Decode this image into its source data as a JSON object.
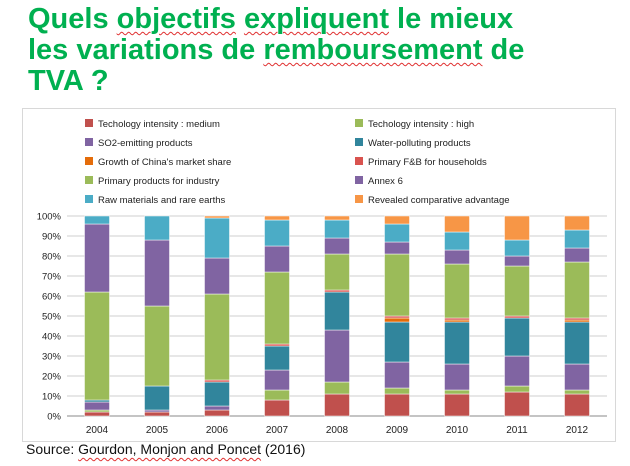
{
  "title": {
    "line1_a": "Quels ",
    "line1_b": "objectifs",
    "line1_c": " ",
    "line1_d": "expliquent",
    "line1_e": " le mieux",
    "line2_a": "les variations de ",
    "line2_b": "remboursement",
    "line2_c": " de",
    "line3": "TVA ?"
  },
  "source": {
    "prefix": "Source: ",
    "authors": "Gourdon, Monjon and Poncet",
    "year": " (2016)"
  },
  "colors": {
    "title": "#00b050",
    "squiggle": "#e03030"
  },
  "chart_data": {
    "type": "bar",
    "stacked": true,
    "categories": [
      "2004",
      "2005",
      "2006",
      "2007",
      "2008",
      "2009",
      "2010",
      "2011",
      "2012"
    ],
    "ylim": [
      0,
      100
    ],
    "yticks": [
      "0%",
      "10%",
      "20%",
      "30%",
      "40%",
      "50%",
      "60%",
      "70%",
      "80%",
      "90%",
      "100%"
    ],
    "legend_position": "top",
    "grid": true,
    "series": [
      {
        "name": "Techology intensity : medium",
        "color": "#c0504d",
        "values": [
          2,
          2,
          3,
          8,
          11,
          11,
          11,
          12,
          11
        ]
      },
      {
        "name": "Techology intensity : high",
        "color": "#9bbb59",
        "values": [
          1,
          0,
          0,
          5,
          6,
          3,
          2,
          3,
          2
        ]
      },
      {
        "name": "SO2-emitting products",
        "color": "#8064a2",
        "values": [
          4,
          1,
          2,
          10,
          26,
          13,
          13,
          15,
          13
        ]
      },
      {
        "name": "Water-polluting products",
        "color": "#31859c",
        "values": [
          1,
          12,
          12,
          12,
          19,
          20,
          21,
          19,
          21
        ]
      },
      {
        "name": "Growth of China's market share",
        "color": "#e46c0a",
        "values": [
          0,
          0,
          0,
          0,
          0,
          2,
          1,
          0,
          1
        ]
      },
      {
        "name": "Primary F&B for households",
        "color": "#d9534f",
        "values": [
          0,
          0,
          1,
          1,
          1,
          1,
          1,
          1,
          1
        ]
      },
      {
        "name": "Primary products for industry",
        "color": "#9bbb59",
        "values": [
          54,
          40,
          43,
          36,
          18,
          31,
          27,
          25,
          28
        ]
      },
      {
        "name": "Annex 6",
        "color": "#8064a2",
        "values": [
          34,
          33,
          18,
          13,
          8,
          6,
          7,
          5,
          7
        ]
      },
      {
        "name": "Raw materials and rare earths",
        "color": "#4bacc6",
        "values": [
          4,
          12,
          20,
          13,
          9,
          9,
          9,
          8,
          9
        ]
      },
      {
        "name": "Revealed comparative advantage",
        "color": "#f79646",
        "values": [
          0,
          0,
          1,
          2,
          2,
          4,
          8,
          12,
          7
        ]
      }
    ]
  }
}
